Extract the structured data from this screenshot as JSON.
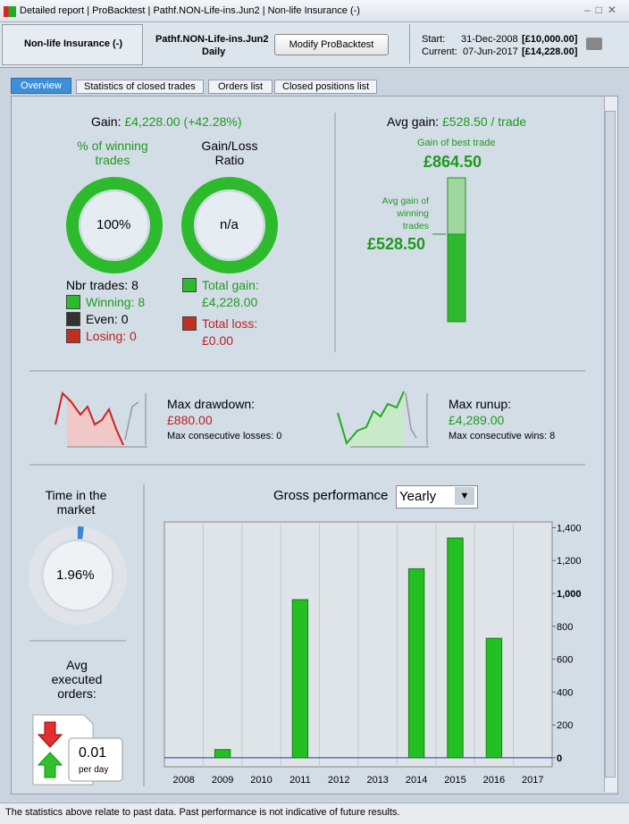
{
  "titlebar": {
    "items": [
      "Detailed report",
      "ProBacktest",
      "Pathf.NON-Life-ins.Jun2",
      "Non-life Insurance (-)"
    ]
  },
  "header": {
    "instrument": "Non-life Insurance (-)",
    "system": "Pathf.NON-Life-ins.Jun2",
    "period": "Daily",
    "button": "Modify ProBacktest",
    "start_label": "Start:",
    "start_date": "31-Dec-2008",
    "start_value": "[£10,000.00]",
    "current_label": "Current:",
    "current_date": "07-Jun-2017",
    "current_value": "[£14,228.00]"
  },
  "tabs": [
    "Overview",
    "Statistics of closed trades",
    "Orders list",
    "Closed positions list"
  ],
  "summary": {
    "gain_label": "Gain:",
    "gain_value": "£4,228.00 (+42.28%)",
    "winning_title": "% of winning trades",
    "winning_pct": "100%",
    "ratio_title": "Gain/Loss Ratio",
    "ratio_value": "n/a",
    "nbr_trades": "Nbr trades: 8",
    "winning": "Winning: 8",
    "even": "Even: 0",
    "losing": "Losing: 0",
    "total_gain_label": "Total gain:",
    "total_gain": "£4,228.00",
    "total_loss_label": "Total loss:",
    "total_loss": "£0.00"
  },
  "avg": {
    "label": "Avg gain:",
    "value": "£528.50 / trade",
    "best_label": "Gain of best trade",
    "best_value": "£864.50",
    "winning_label": "Avg gain of winning trades",
    "winning_value": "£528.50"
  },
  "drawdown": {
    "label": "Max drawdown:",
    "value": "£880.00",
    "consecutive": "Max consecutive losses: 0"
  },
  "runup": {
    "label": "Max runup:",
    "value": "£4,289.00",
    "consecutive": "Max consecutive wins: 8"
  },
  "market": {
    "label": "Time in the market",
    "value": "1.96%"
  },
  "orders": {
    "label": "Avg executed orders:",
    "value": "0.01",
    "unit": "per day"
  },
  "performance": {
    "label": "Gross performance",
    "select": "Yearly"
  },
  "chart_data": {
    "type": "bar",
    "categories": [
      "2008",
      "2009",
      "2010",
      "2011",
      "2012",
      "2013",
      "2014",
      "2015",
      "2016",
      "2017"
    ],
    "values": [
      0,
      50,
      0,
      962,
      0,
      0,
      1150,
      1337,
      727,
      0
    ],
    "color": "#22c022",
    "ylim": [
      -55,
      1435
    ],
    "yticks": [
      0,
      200,
      400,
      600,
      800,
      {
        "value": 1000,
        "label": "1,000"
      },
      {
        "value": 1200,
        "label": "1,200"
      },
      {
        "value": 1400,
        "label": "1,400"
      }
    ],
    "grid": true
  },
  "footer": "The statistics above relate to past data. Past performance is not indicative of future results."
}
